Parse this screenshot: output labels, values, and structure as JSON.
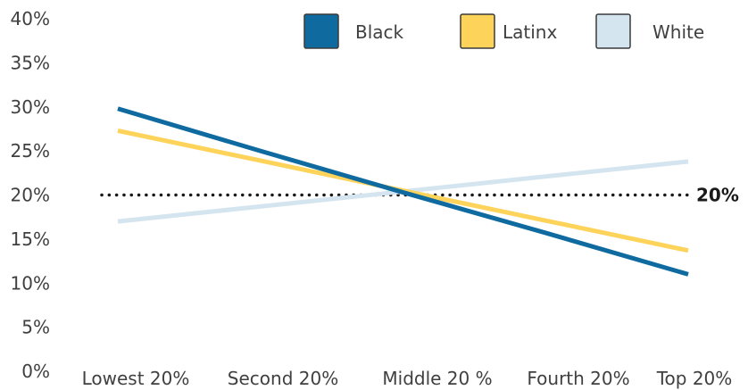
{
  "chart_data": {
    "type": "line",
    "title": "",
    "xlabel": "",
    "ylabel": "",
    "categories": [
      "Lowest 20%",
      "Second 20%",
      "Middle 20 %",
      "Fourth 20%",
      "Top 20%"
    ],
    "ylim": [
      0,
      40
    ],
    "yticks": [
      {
        "value": 0,
        "label": "0%"
      },
      {
        "value": 5,
        "label": "5%"
      },
      {
        "value": 10,
        "label": "10%"
      },
      {
        "value": 15,
        "label": "15%"
      },
      {
        "value": 20,
        "label": "20%"
      },
      {
        "value": 25,
        "label": "25%"
      },
      {
        "value": 30,
        "label": "30%"
      },
      {
        "value": 35,
        "label": "35%"
      },
      {
        "value": 40,
        "label": "40%"
      }
    ],
    "series": [
      {
        "name": "Black",
        "color": "#0f6aa0",
        "values": [
          29.8,
          25.0,
          20.3,
          15.7,
          11.0
        ]
      },
      {
        "name": "Latinx",
        "color": "#fdd35a",
        "values": [
          27.3,
          23.9,
          20.5,
          17.1,
          13.7
        ]
      },
      {
        "name": "White",
        "color": "#d5e5f0",
        "values": [
          17.0,
          18.7,
          20.4,
          22.1,
          23.8
        ]
      }
    ],
    "reference_line": {
      "value": 20,
      "label": "20%",
      "style": "dotted",
      "color": "#1a1a1a"
    },
    "legend": {
      "placement": "top-right"
    },
    "grid": false
  }
}
